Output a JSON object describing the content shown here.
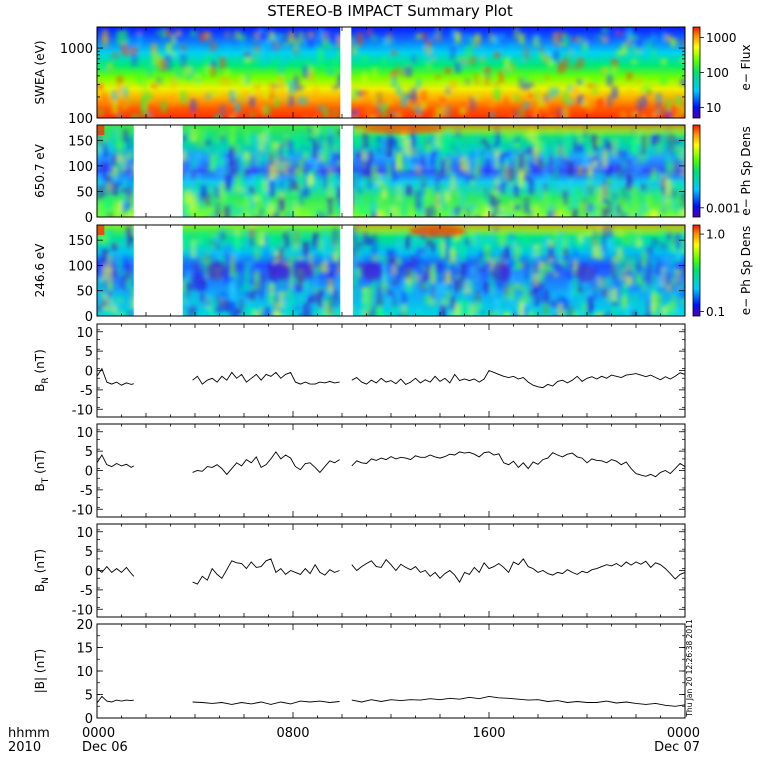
{
  "title": "STEREO-B IMPACT Summary Plot",
  "timestamp": "Thu Jan 20 12:26:38 2011",
  "x_axis": {
    "tick_labels": [
      "0000",
      "0800",
      "1600",
      "0000"
    ],
    "date_labels": [
      "Dec 06",
      "Dec 07"
    ],
    "left_label_top": "hhmm",
    "left_label_bottom": "2010"
  },
  "chart_data": [
    {
      "type": "heatmap",
      "id": "swea",
      "ylabel": "SWEA (eV)",
      "ylim": [
        100,
        2000
      ],
      "yscale": "log",
      "yticks": [
        "1000",
        "100"
      ],
      "colorbar": {
        "label": "e− Flux",
        "scale": "log",
        "ticks": [
          "1000",
          "100",
          "10"
        ],
        "range": [
          5,
          2000
        ]
      },
      "gaps": [
        [
          9.93,
          10.38
        ]
      ]
    },
    {
      "type": "heatmap",
      "id": "pad650",
      "ylabel": "650.7 eV",
      "ylim": [
        0,
        180
      ],
      "yticks": [
        "0",
        "50",
        "100",
        "150"
      ],
      "colorbar": {
        "label": "e− Ph Sp Dens",
        "scale": "log",
        "ticks": [
          "0.001"
        ]
      },
      "gaps": [
        [
          1.5,
          3.5
        ],
        [
          9.93,
          10.45
        ]
      ]
    },
    {
      "type": "heatmap",
      "id": "pad246",
      "ylabel": "246.6 eV",
      "ylim": [
        0,
        180
      ],
      "yticks": [
        "0",
        "50",
        "100",
        "150"
      ],
      "colorbar": {
        "label": "e− Ph Sp Dens",
        "scale": "log",
        "ticks": [
          "1.0",
          "0.1"
        ]
      },
      "gaps": [
        [
          1.5,
          3.5
        ],
        [
          9.93,
          10.45
        ]
      ]
    },
    {
      "type": "line",
      "id": "br",
      "ylabel_main": "B",
      "ylabel_sub": "R",
      "ylabel_unit": " (nT)",
      "ylim": [
        -12,
        12
      ],
      "yticks": [
        "-10",
        "-5",
        "0",
        "5",
        "10"
      ],
      "segments": [
        {
          "x": [
            0,
            0.2,
            0.4,
            0.6,
            0.8,
            1.0,
            1.2,
            1.4,
            1.5
          ],
          "y": [
            -1.5,
            0.5,
            -3,
            -3.5,
            -3,
            -3.8,
            -3.2,
            -3.6,
            -3.4
          ]
        },
        {
          "x": [
            3.9,
            4.1,
            4.3,
            4.5,
            4.7,
            4.9,
            5.1,
            5.3,
            5.5,
            5.7,
            5.9,
            6.1,
            6.3,
            6.5,
            6.7,
            6.9,
            7.1,
            7.3,
            7.5,
            7.7,
            7.9,
            8.1,
            8.3,
            8.5,
            8.7,
            8.9,
            9.1,
            9.3,
            9.5,
            9.7,
            9.9
          ],
          "y": [
            -2.5,
            -1.5,
            -3.5,
            -2.5,
            -2,
            -3,
            -1.5,
            -2.5,
            -0.5,
            -2,
            -1,
            -3,
            -2,
            -1,
            -2.5,
            -1,
            -1.5,
            -0.5,
            -2,
            -1,
            -0.5,
            -3,
            -3.5,
            -3,
            -3.5,
            -3.5,
            -3,
            -3.2,
            -2.8,
            -3.2,
            -3
          ]
        },
        {
          "x": [
            10.4,
            10.6,
            10.8,
            11.0,
            11.2,
            11.4,
            11.6,
            11.8,
            12.0,
            12.2,
            12.4,
            12.6,
            12.8,
            13.0,
            13.2,
            13.4,
            13.6,
            13.8,
            14.0,
            14.2,
            14.4,
            14.6,
            14.8,
            15.0,
            15.2,
            15.4,
            15.6,
            15.8,
            16.0,
            16.2,
            16.4,
            16.6,
            16.8,
            17.0,
            17.2,
            17.4,
            17.6,
            17.8,
            18.0,
            18.2,
            18.4,
            18.6,
            18.8,
            19.0,
            19.2,
            19.4,
            19.6,
            19.8,
            20.0,
            20.2,
            20.4,
            20.6,
            20.8,
            21.0,
            21.2,
            21.4,
            21.6,
            21.8,
            22.0,
            22.2,
            22.4,
            22.6,
            22.8,
            23.0,
            23.2,
            23.4,
            23.6,
            23.8,
            24.0
          ],
          "y": [
            -2.5,
            -1.8,
            -3,
            -3.5,
            -2.5,
            -3.2,
            -2,
            -3,
            -2.6,
            -3.4,
            -2.2,
            -3.6,
            -3,
            -2,
            -3.2,
            -2.4,
            -3,
            -1.5,
            -2.8,
            -2,
            -3.2,
            -1,
            -2.6,
            -2.2,
            -2.6,
            -2.2,
            -3,
            -2.2,
            0,
            -0.5,
            -1,
            -1.5,
            -1.8,
            -1.5,
            -2.2,
            -1.8,
            -3,
            -3.8,
            -4.2,
            -4.4,
            -3.6,
            -4,
            -2.8,
            -2.5,
            -3.2,
            -2.5,
            -1.5,
            -2.8,
            -2,
            -1.6,
            -2.2,
            -1.5,
            -2,
            -1.2,
            -1.5,
            -1.8,
            -1.2,
            -1,
            -0.8,
            -1.2,
            -1.6,
            -1.2,
            -1.8,
            -2.4,
            -1.6,
            -2.2,
            -1.5,
            -0.6,
            -1
          ]
        }
      ]
    },
    {
      "type": "line",
      "id": "bt",
      "ylabel_main": "B",
      "ylabel_sub": "T",
      "ylabel_unit": " (nT)",
      "ylim": [
        -12,
        12
      ],
      "yticks": [
        "-10",
        "-5",
        "0",
        "5",
        "10"
      ],
      "segments": [
        {
          "x": [
            0,
            0.2,
            0.4,
            0.6,
            0.8,
            1.0,
            1.2,
            1.4,
            1.5
          ],
          "y": [
            2,
            4,
            1.5,
            1,
            1.8,
            1.2,
            1.6,
            0.8,
            1.2
          ]
        },
        {
          "x": [
            3.9,
            4.1,
            4.3,
            4.5,
            4.7,
            4.9,
            5.1,
            5.3,
            5.5,
            5.7,
            5.9,
            6.1,
            6.3,
            6.5,
            6.7,
            6.9,
            7.1,
            7.3,
            7.5,
            7.7,
            7.9,
            8.1,
            8.3,
            8.5,
            8.7,
            8.9,
            9.1,
            9.3,
            9.5,
            9.7,
            9.9
          ],
          "y": [
            -0.5,
            0,
            -0.2,
            1,
            0.8,
            1.5,
            0.5,
            -1,
            0.5,
            2,
            1.2,
            2.8,
            2,
            3.5,
            0.8,
            1.5,
            3,
            4.8,
            3,
            4,
            3.2,
            1,
            0.2,
            1.8,
            2,
            0.8,
            -0.5,
            1,
            2.5,
            2,
            2.8
          ]
        },
        {
          "x": [
            10.4,
            10.6,
            10.8,
            11.0,
            11.2,
            11.4,
            11.6,
            11.8,
            12.0,
            12.2,
            12.4,
            12.6,
            12.8,
            13.0,
            13.2,
            13.4,
            13.6,
            13.8,
            14.0,
            14.2,
            14.4,
            14.6,
            14.8,
            15.0,
            15.2,
            15.4,
            15.6,
            15.8,
            16.0,
            16.2,
            16.4,
            16.6,
            16.8,
            17.0,
            17.2,
            17.4,
            17.6,
            17.8,
            18.0,
            18.2,
            18.4,
            18.6,
            18.8,
            19.0,
            19.2,
            19.4,
            19.6,
            19.8,
            20.0,
            20.2,
            20.4,
            20.6,
            20.8,
            21.0,
            21.2,
            21.4,
            21.6,
            21.8,
            22.0,
            22.2,
            22.4,
            22.6,
            22.8,
            23.0,
            23.2,
            23.4,
            23.6,
            23.8,
            24.0
          ],
          "y": [
            1.2,
            2.5,
            2,
            1.8,
            3,
            2.6,
            3.2,
            2.8,
            3.6,
            3,
            3.4,
            3.2,
            2.8,
            3.8,
            3.4,
            3.4,
            4,
            3.5,
            3.2,
            3.6,
            4.2,
            4,
            4.8,
            4.5,
            4.7,
            4.2,
            3.5,
            4.6,
            4.8,
            4,
            4.3,
            2,
            1.5,
            2.4,
            0.8,
            2,
            0.5,
            2.2,
            1.6,
            2.8,
            3.2,
            4.6,
            4,
            3.5,
            4.2,
            4.5,
            3.5,
            3.2,
            2,
            3,
            2.6,
            2.5,
            2,
            2.8,
            2.4,
            1.5,
            2.2,
            0.5,
            -0.8,
            -1.2,
            -1.5,
            -1,
            -1.6,
            -0.5,
            0,
            -0.8,
            0.5,
            1.8,
            1
          ]
        }
      ]
    },
    {
      "type": "line",
      "id": "bn",
      "ylabel_main": "B",
      "ylabel_sub": "N",
      "ylabel_unit": " (nT)",
      "ylim": [
        -12,
        12
      ],
      "yticks": [
        "-10",
        "-5",
        "0",
        "5",
        "10"
      ],
      "segments": [
        {
          "x": [
            0,
            0.2,
            0.4,
            0.6,
            0.8,
            1.0,
            1.2,
            1.4,
            1.5
          ],
          "y": [
            0.5,
            -0.5,
            1,
            -0.5,
            0.5,
            -0.5,
            0.8,
            -0.8,
            -1.5
          ]
        },
        {
          "x": [
            3.9,
            4.1,
            4.3,
            4.5,
            4.7,
            4.9,
            5.1,
            5.3,
            5.5,
            5.7,
            5.9,
            6.1,
            6.3,
            6.5,
            6.7,
            6.9,
            7.1,
            7.3,
            7.5,
            7.7,
            7.9,
            8.1,
            8.3,
            8.5,
            8.7,
            8.9,
            9.1,
            9.3,
            9.5,
            9.7,
            9.9
          ],
          "y": [
            -3,
            -3.5,
            -1.5,
            -2.5,
            0.5,
            -1,
            -2,
            0.2,
            2.5,
            2,
            1.8,
            0.5,
            2.2,
            0.8,
            1,
            2.5,
            3,
            -0.5,
            0.5,
            -1,
            0,
            -0.5,
            -1,
            0.5,
            -0.8,
            1.5,
            -0.5,
            -1.2,
            0.2,
            -0.5,
            0
          ]
        },
        {
          "x": [
            10.4,
            10.6,
            10.8,
            11.0,
            11.2,
            11.4,
            11.6,
            11.8,
            12.0,
            12.2,
            12.4,
            12.6,
            12.8,
            13.0,
            13.2,
            13.4,
            13.6,
            13.8,
            14.0,
            14.2,
            14.4,
            14.6,
            14.8,
            15.0,
            15.2,
            15.4,
            15.6,
            15.8,
            16.0,
            16.2,
            16.4,
            16.6,
            16.8,
            17.0,
            17.2,
            17.4,
            17.6,
            17.8,
            18.0,
            18.2,
            18.4,
            18.6,
            18.8,
            19.0,
            19.2,
            19.4,
            19.6,
            19.8,
            20.0,
            20.2,
            20.4,
            20.6,
            20.8,
            21.0,
            21.2,
            21.4,
            21.6,
            21.8,
            22.0,
            22.2,
            22.4,
            22.6,
            22.8,
            23.0,
            23.2,
            23.4,
            23.6,
            23.8,
            24.0
          ],
          "y": [
            1.5,
            0,
            1,
            1.8,
            2.5,
            1,
            0.8,
            2.8,
            1.5,
            0,
            1.6,
            0.8,
            0.2,
            1,
            -0.5,
            0,
            -1.5,
            -0.5,
            -2,
            -0.8,
            0,
            -1.2,
            -3,
            -0.5,
            -1,
            0.8,
            -0.5,
            2,
            0.5,
            1,
            1.8,
            0.8,
            -0.5,
            2.2,
            1.5,
            3,
            1,
            0.5,
            -0.5,
            0,
            -0.8,
            -1.2,
            -0.5,
            -0.8,
            0.2,
            -0.5,
            -1,
            -0.2,
            -0.6,
            0.2,
            0.5,
            1,
            1.5,
            1.2,
            1.8,
            1,
            2.2,
            1.4,
            2.2,
            1.6,
            2.4,
            0.8,
            2,
            1.5,
            0.5,
            -0.8,
            -2.2,
            -1,
            -0.5
          ]
        }
      ]
    },
    {
      "type": "line",
      "id": "bmag",
      "ylabel_main": "|B|",
      "ylabel_sub": "",
      "ylabel_unit": " (nT)",
      "ylim": [
        0,
        20
      ],
      "yticks": [
        "0",
        "5",
        "10",
        "15",
        "20"
      ],
      "segments": [
        {
          "x": [
            0,
            0.2,
            0.4,
            0.6,
            0.8,
            1.0,
            1.2,
            1.4,
            1.5
          ],
          "y": [
            3.2,
            4.6,
            3.6,
            3.4,
            3.8,
            3.6,
            3.8,
            3.7,
            3.8
          ]
        },
        {
          "x": [
            3.9,
            4.3,
            4.7,
            5.1,
            5.5,
            5.9,
            6.3,
            6.7,
            7.1,
            7.5,
            7.9,
            8.3,
            8.7,
            9.1,
            9.5,
            9.9
          ],
          "y": [
            3.4,
            3.3,
            3.1,
            3.3,
            2.9,
            3.3,
            3,
            3.4,
            2.9,
            3.4,
            3,
            3.6,
            3.4,
            3.6,
            3.3,
            3.5
          ]
        },
        {
          "x": [
            10.4,
            10.8,
            11.2,
            11.6,
            12.0,
            12.4,
            12.8,
            13.2,
            13.6,
            14.0,
            14.4,
            14.8,
            15.2,
            15.6,
            16.0,
            16.4,
            16.8,
            17.2,
            17.6,
            18.0,
            18.4,
            18.8,
            19.2,
            19.6,
            20.0,
            20.4,
            20.8,
            21.2,
            21.6,
            22.0,
            22.4,
            22.8,
            23.2,
            23.6,
            24.0
          ],
          "y": [
            3.8,
            3.4,
            3.9,
            3.5,
            3.9,
            3.7,
            3.9,
            3.8,
            4.1,
            3.9,
            4.2,
            4,
            4.4,
            4.1,
            4.6,
            4.3,
            4.2,
            4,
            3.8,
            3.9,
            3.5,
            3.7,
            3.3,
            3.5,
            3.3,
            3.3,
            3.6,
            3.2,
            3.4,
            3.1,
            2.9,
            3.1,
            2.7,
            2.5,
            2.8
          ]
        }
      ]
    }
  ]
}
